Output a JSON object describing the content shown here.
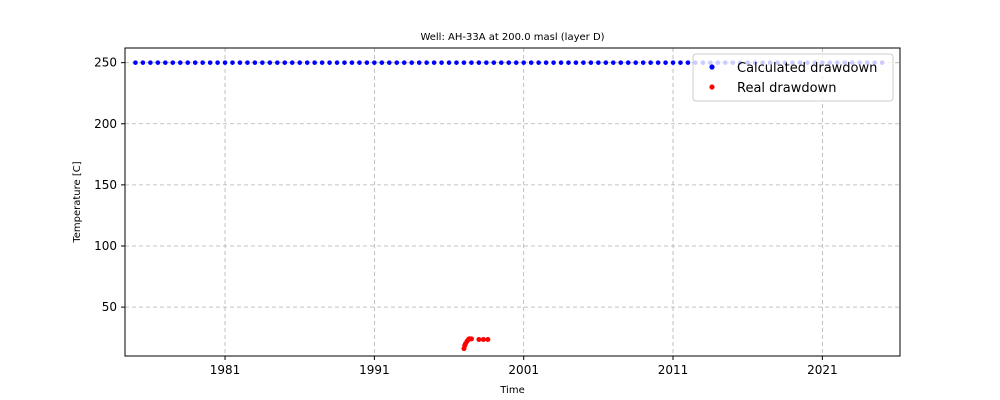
{
  "chart_data": {
    "type": "scatter",
    "title": "Well: AH-33A at 200.0 masl (layer D)",
    "xlabel": "Time",
    "ylabel": "Temperature [C]",
    "xlim": [
      1974.3,
      2026.2
    ],
    "ylim": [
      10.0,
      262.0
    ],
    "x_ticks": [
      1981,
      1991,
      2001,
      2011,
      2021
    ],
    "y_ticks": [
      50,
      100,
      150,
      200,
      250
    ],
    "grid": true,
    "legend_position": "top-right",
    "colors": {
      "calculated": "#0000ff",
      "real": "#ff0000"
    },
    "calculated_series": {
      "name": "Calculated drawdown",
      "value": 250.0,
      "x_start": 1975.0,
      "x_end": 2025.0,
      "x_step": 0.5
    },
    "series": [
      {
        "name": "Real drawdown",
        "x": [
          1997.0,
          1997.05,
          1997.1,
          1997.2,
          1997.3,
          1997.35,
          1997.4,
          1997.5,
          1998.0,
          1998.3,
          1998.6
        ],
        "y": [
          16.0,
          18.5,
          20.0,
          22.0,
          23.5,
          24.0,
          24.0,
          24.0,
          23.5,
          23.5,
          23.5
        ]
      }
    ]
  }
}
